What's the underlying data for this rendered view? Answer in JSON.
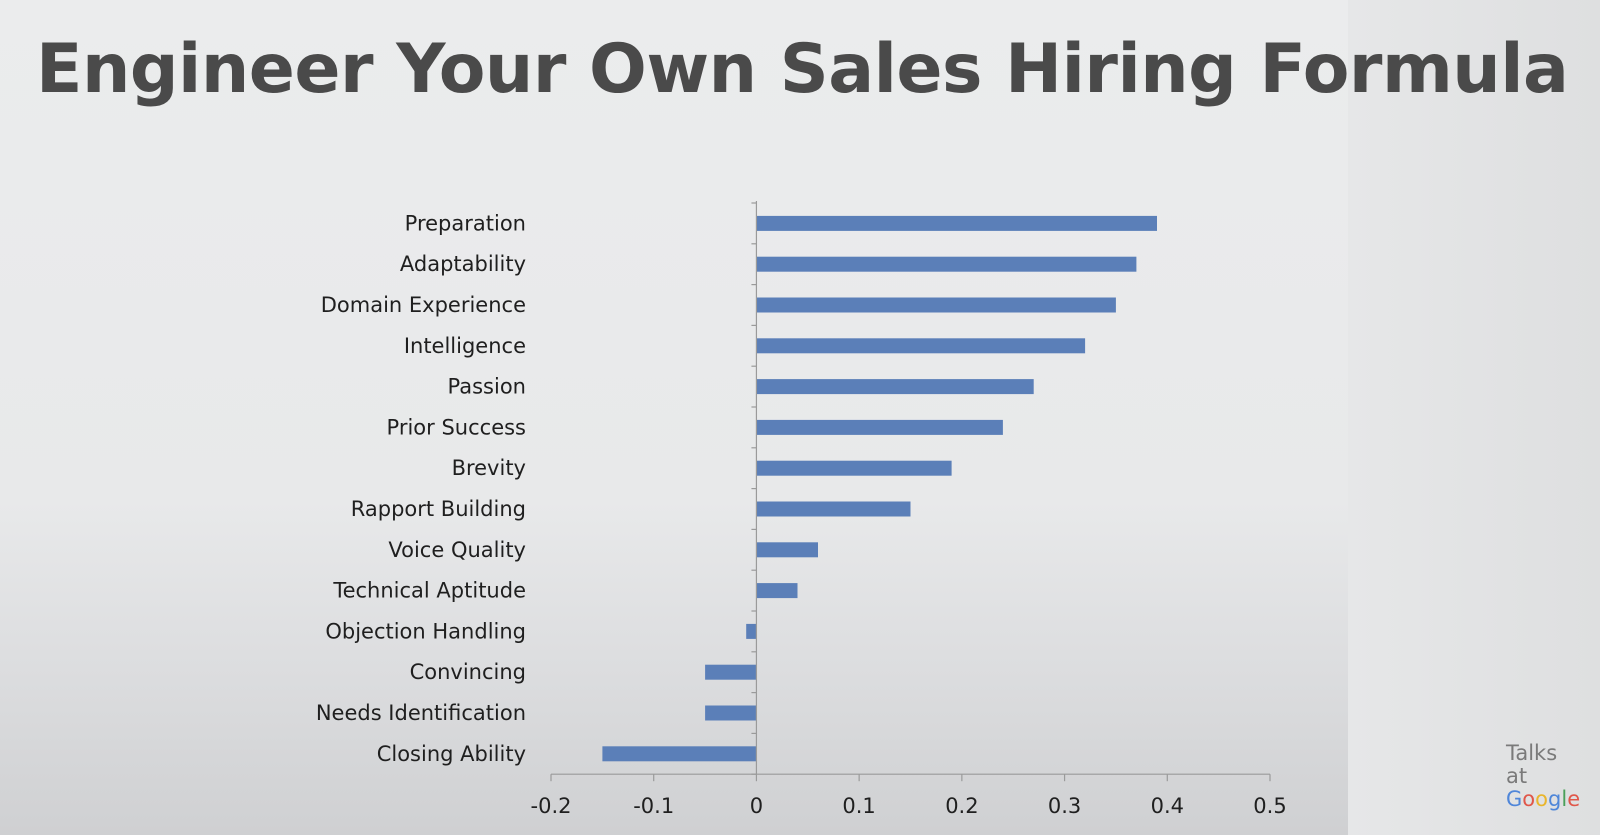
{
  "slide": {
    "title": "Engineer Your Own Sales Hiring Formula"
  },
  "branding": {
    "line1": "Talks",
    "line2": "at",
    "logo_letters": [
      "G",
      "o",
      "o",
      "g",
      "l",
      "e"
    ]
  },
  "chart_data": {
    "type": "bar",
    "orientation": "horizontal",
    "categories": [
      "Preparation",
      "Adaptability",
      "Domain Experience",
      "Intelligence",
      "Passion",
      "Prior Success",
      "Brevity",
      "Rapport Building",
      "Voice Quality",
      "Technical Aptitude",
      "Objection Handling",
      "Convincing",
      "Needs Identification",
      "Closing Ability"
    ],
    "values": [
      0.39,
      0.37,
      0.35,
      0.32,
      0.27,
      0.24,
      0.19,
      0.15,
      0.06,
      0.04,
      -0.01,
      -0.05,
      -0.05,
      -0.15
    ],
    "xlim": [
      -0.2,
      0.5
    ],
    "xticks": [
      "-0.2",
      "-0.1",
      "0",
      "0.1",
      "0.2",
      "0.3",
      "0.4",
      "0.5"
    ],
    "xtick_values": [
      -0.2,
      -0.1,
      0,
      0.1,
      0.2,
      0.3,
      0.4,
      0.5
    ],
    "bar_color": "#5b7fb8",
    "grid": false,
    "legend": "none"
  }
}
